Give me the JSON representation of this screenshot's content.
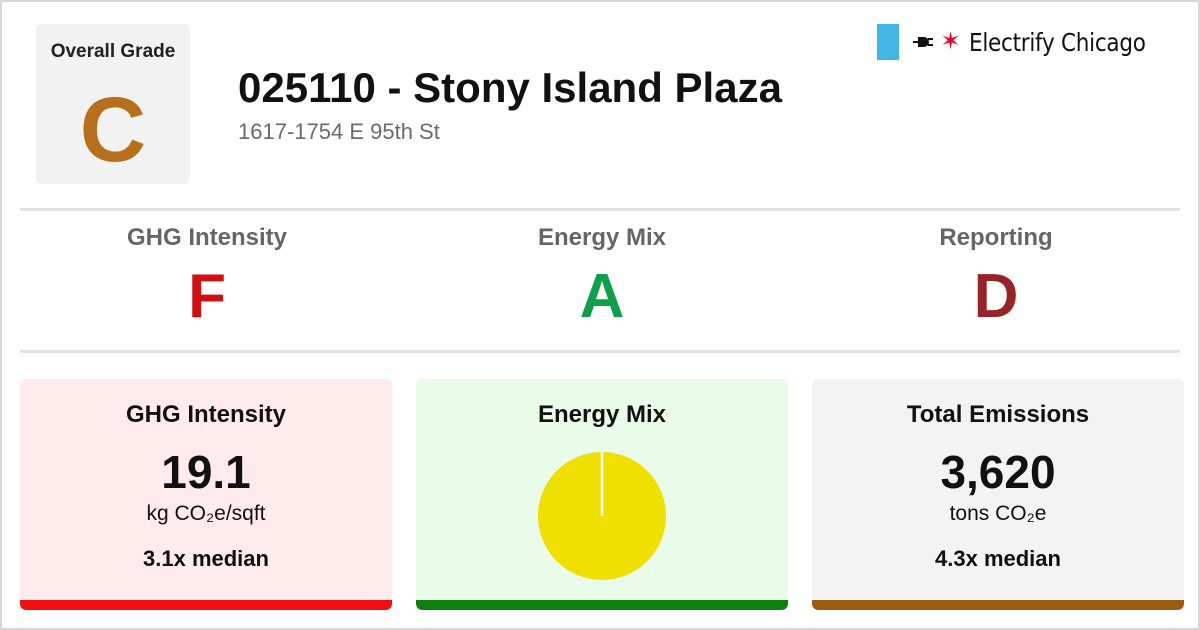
{
  "overall": {
    "label": "Overall Grade",
    "grade": "C",
    "color": "#b86f1c"
  },
  "building": {
    "title": "025110 - Stony Island Plaza",
    "address": "1617-1754 E 95th St"
  },
  "brand": {
    "name": "Electrify Chicago",
    "flag_color": "#41b6e6",
    "star_color": "#e4002b"
  },
  "subgrades": [
    {
      "label": "GHG Intensity",
      "grade": "F",
      "color": "#d10f0f"
    },
    {
      "label": "Energy Mix",
      "grade": "A",
      "color": "#0e9f4b"
    },
    {
      "label": "Reporting",
      "grade": "D",
      "color": "#972326"
    }
  ],
  "cards": {
    "ghg": {
      "title": "GHG Intensity",
      "value": "19.1",
      "unit": "kg CO₂e/sqft",
      "note": "3.1x median",
      "bg": "#ffeaec",
      "bar": "#f00f0f"
    },
    "mix": {
      "title": "Energy Mix",
      "bg": "#e9fce9",
      "bar": "#0c7f0c",
      "pie_color": "#efe000",
      "pie_divider": "#ffffff"
    },
    "total": {
      "title": "Total Emissions",
      "value": "3,620",
      "unit": "tons CO₂e",
      "note": "4.3x median",
      "bg": "#f3f3f3",
      "bar": "#9a5d0f"
    }
  }
}
